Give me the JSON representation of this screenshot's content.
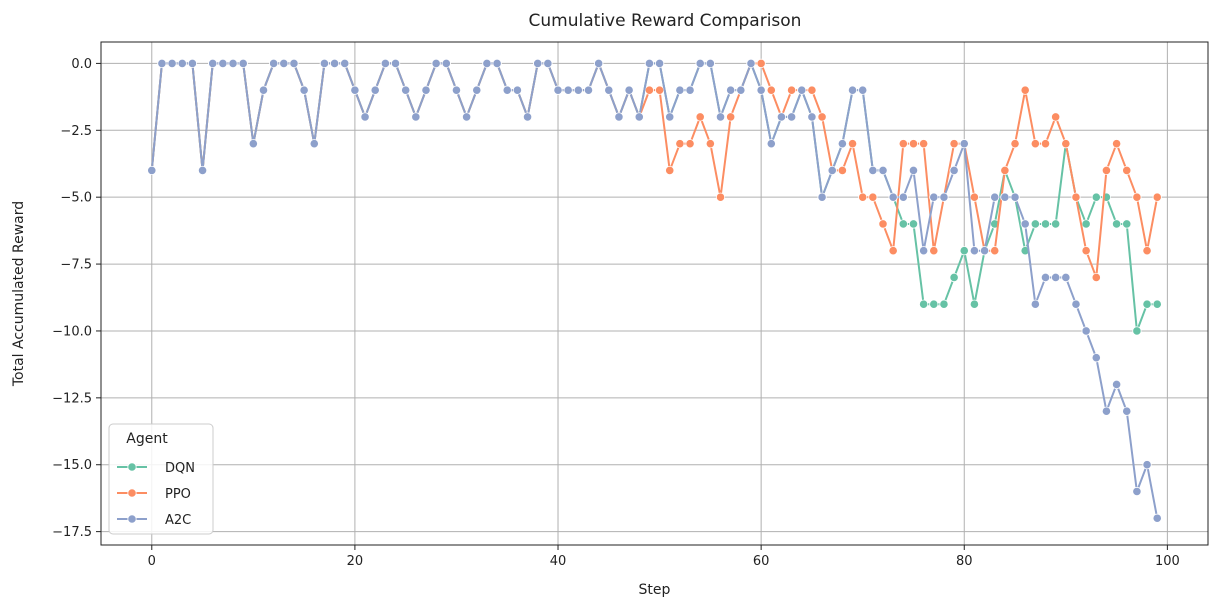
{
  "chart_data": {
    "type": "line",
    "title": "Cumulative Reward Comparison",
    "xlabel": "Step",
    "ylabel": "Total Accumulated Reward",
    "xlim": [
      -5,
      104
    ],
    "ylim": [
      -18,
      0.8
    ],
    "xticks": [
      0,
      20,
      40,
      60,
      80,
      100
    ],
    "yticks": [
      0.0,
      -2.5,
      -5.0,
      -7.5,
      -10.0,
      -12.5,
      -15.0,
      -17.5
    ],
    "xtick_labels": [
      "0",
      "20",
      "40",
      "60",
      "80",
      "100"
    ],
    "ytick_labels": [
      "0.0",
      "−2.5",
      "−5.0",
      "−7.5",
      "−10.0",
      "−12.5",
      "−15.0",
      "−17.5"
    ],
    "grid": true,
    "legend": {
      "title": "Agent",
      "position": "lower-left"
    },
    "x": [
      0,
      1,
      2,
      3,
      4,
      5,
      6,
      7,
      8,
      9,
      10,
      11,
      12,
      13,
      14,
      15,
      16,
      17,
      18,
      19,
      20,
      21,
      22,
      23,
      24,
      25,
      26,
      27,
      28,
      29,
      30,
      31,
      32,
      33,
      34,
      35,
      36,
      37,
      38,
      39,
      40,
      41,
      42,
      43,
      44,
      45,
      46,
      47,
      48,
      49,
      50,
      51,
      52,
      53,
      54,
      55,
      56,
      57,
      58,
      59,
      60,
      61,
      62,
      63,
      64,
      65,
      66,
      67,
      68,
      69,
      70,
      71,
      72,
      73,
      74,
      75,
      76,
      77,
      78,
      79,
      80,
      81,
      82,
      83,
      84,
      85,
      86,
      87,
      88,
      89,
      90,
      91,
      92,
      93,
      94,
      95,
      96,
      97,
      98,
      99
    ],
    "series": [
      {
        "name": "DQN",
        "color": "#66c2a5",
        "values": [
          -4,
          0,
          0,
          0,
          0,
          -4,
          0,
          0,
          0,
          0,
          -3,
          -1,
          0,
          0,
          0,
          -1,
          -3,
          0,
          0,
          0,
          -1,
          -2,
          -1,
          0,
          0,
          -1,
          -2,
          -1,
          0,
          0,
          -1,
          -2,
          -1,
          0,
          0,
          -1,
          -1,
          -2,
          0,
          0,
          -1,
          -1,
          -1,
          -1,
          0,
          -1,
          -2,
          -1,
          -2,
          0,
          0,
          -2,
          -1,
          -1,
          0,
          0,
          -2,
          -1,
          -1,
          0,
          -1,
          -3,
          -2,
          -2,
          -1,
          -2,
          -5,
          -4,
          -3,
          -1,
          -1,
          -4,
          -4,
          -5,
          -6,
          -6,
          -9,
          -9,
          -9,
          -8,
          -7,
          -9,
          -7,
          -6,
          -4,
          -5,
          -7,
          -6,
          -6,
          -6,
          -3,
          -5,
          -6,
          -5,
          -5,
          -6,
          -6,
          -10,
          -9,
          -9
        ]
      },
      {
        "name": "PPO",
        "color": "#fc8d62",
        "values": [
          -4,
          0,
          0,
          0,
          0,
          -4,
          0,
          0,
          0,
          0,
          -3,
          -1,
          0,
          0,
          0,
          -1,
          -3,
          0,
          0,
          0,
          -1,
          -2,
          -1,
          0,
          0,
          -1,
          -2,
          -1,
          0,
          0,
          -1,
          -2,
          -1,
          0,
          0,
          -1,
          -1,
          -2,
          0,
          0,
          -1,
          -1,
          -1,
          -1,
          0,
          -1,
          -2,
          -1,
          -2,
          -1,
          -1,
          -4,
          -3,
          -3,
          -2,
          -3,
          -5,
          -2,
          -1,
          0,
          0,
          -1,
          -2,
          -1,
          -1,
          -1,
          -2,
          -4,
          -4,
          -3,
          -5,
          -5,
          -6,
          -7,
          -3,
          -3,
          -3,
          -7,
          -5,
          -3,
          -3,
          -5,
          -7,
          -7,
          -4,
          -3,
          -1,
          -3,
          -3,
          -2,
          -3,
          -5,
          -7,
          -8,
          -4,
          -3,
          -4,
          -5,
          -7,
          -5
        ]
      },
      {
        "name": "A2C",
        "color": "#8da0cb",
        "values": [
          -4,
          0,
          0,
          0,
          0,
          -4,
          0,
          0,
          0,
          0,
          -3,
          -1,
          0,
          0,
          0,
          -1,
          -3,
          0,
          0,
          0,
          -1,
          -2,
          -1,
          0,
          0,
          -1,
          -2,
          -1,
          0,
          0,
          -1,
          -2,
          -1,
          0,
          0,
          -1,
          -1,
          -2,
          0,
          0,
          -1,
          -1,
          -1,
          -1,
          0,
          -1,
          -2,
          -1,
          -2,
          0,
          0,
          -2,
          -1,
          -1,
          0,
          0,
          -2,
          -1,
          -1,
          0,
          -1,
          -3,
          -2,
          -2,
          -1,
          -2,
          -5,
          -4,
          -3,
          -1,
          -1,
          -4,
          -4,
          -5,
          -5,
          -4,
          -7,
          -5,
          -5,
          -4,
          -3,
          -7,
          -7,
          -5,
          -5,
          -5,
          -6,
          -9,
          -8,
          -8,
          -8,
          -9,
          -10,
          -11,
          -13,
          -12,
          -13,
          -16,
          -15,
          -17
        ]
      }
    ]
  }
}
